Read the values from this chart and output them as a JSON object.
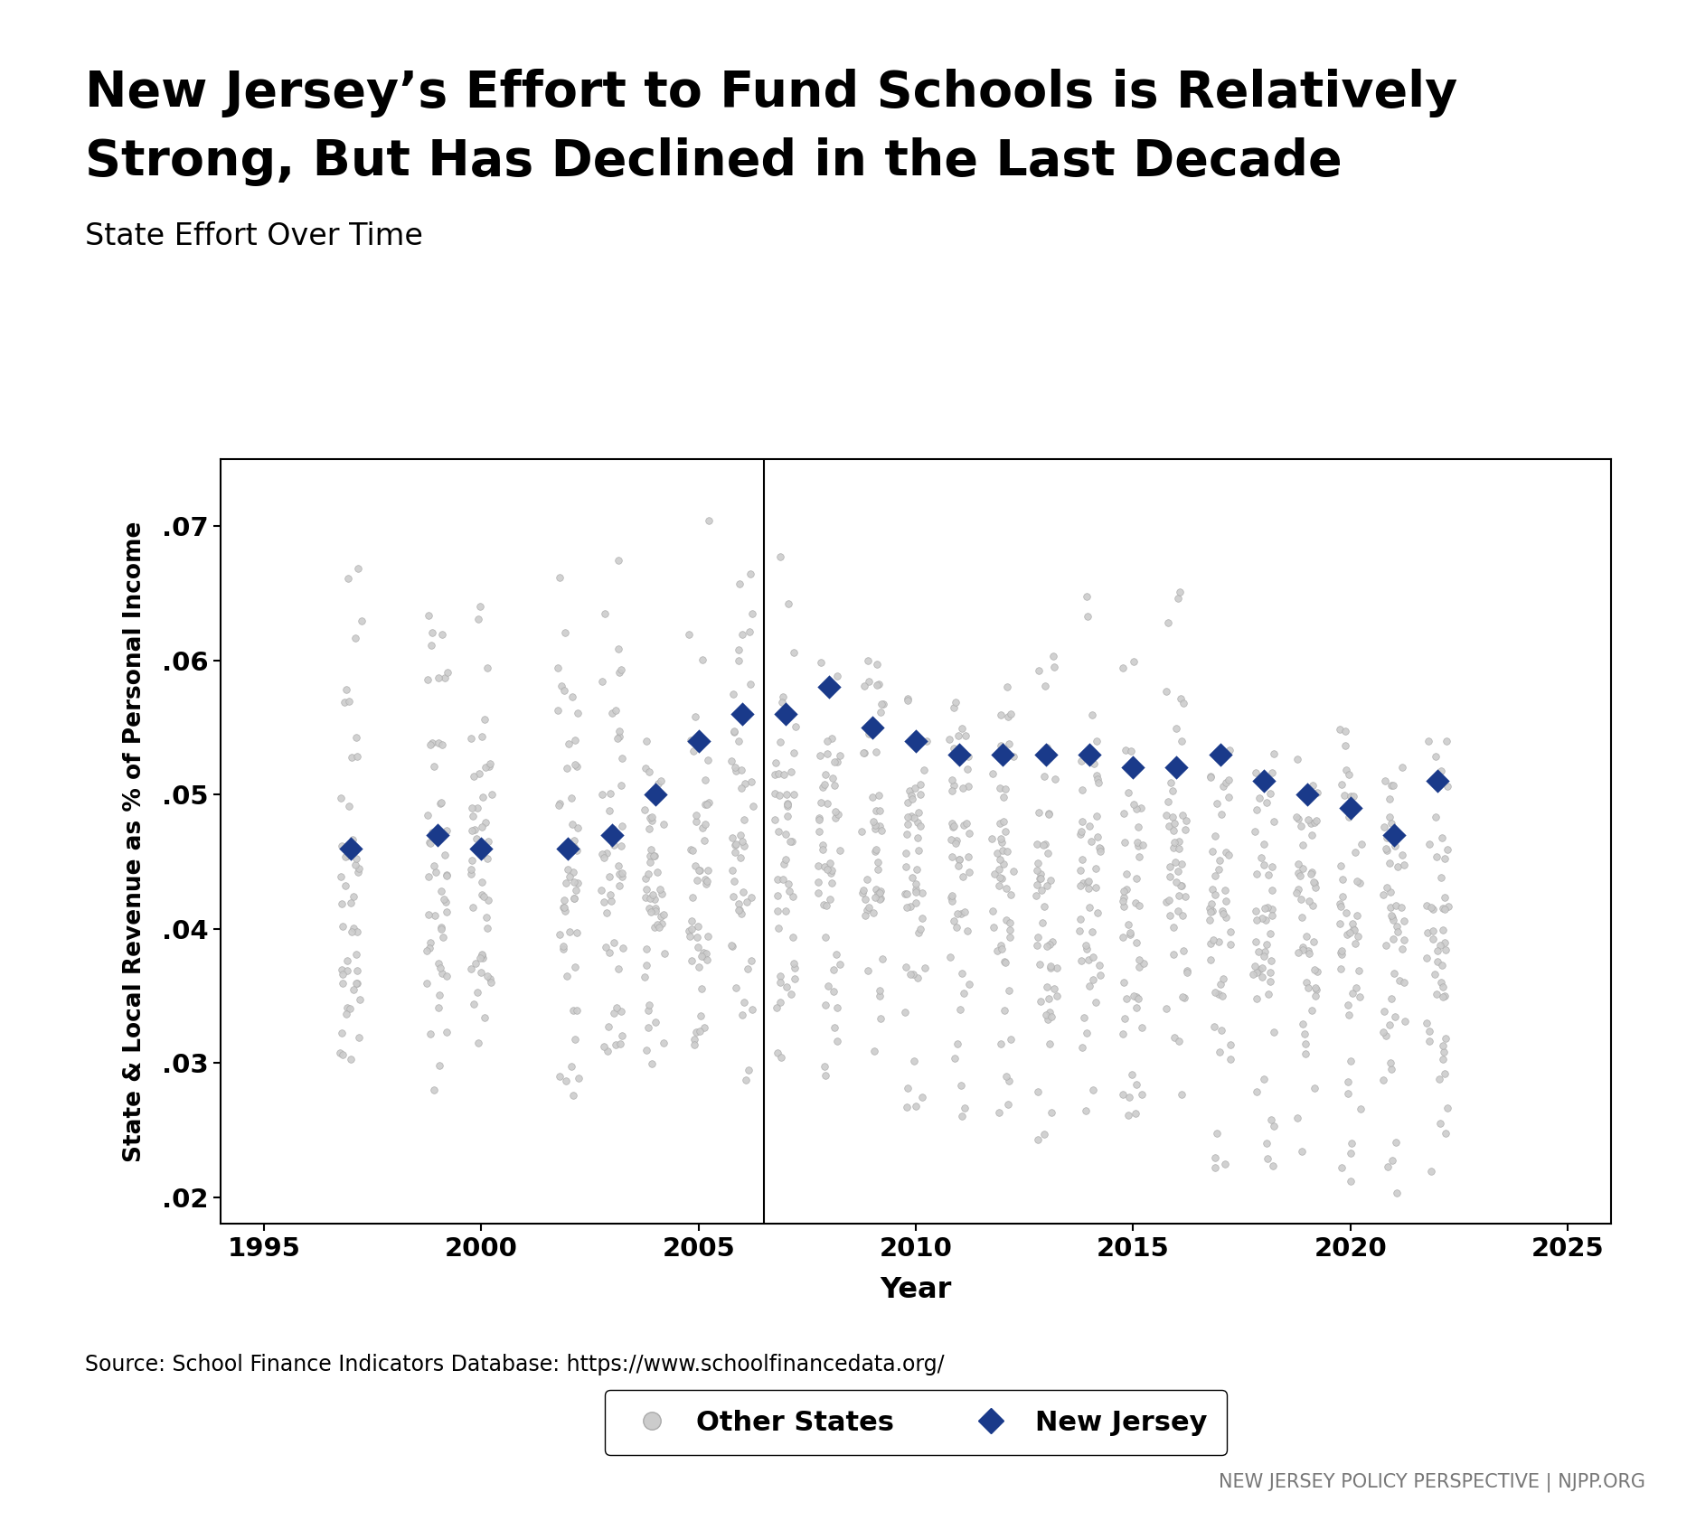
{
  "title_line1": "New Jersey’s Effort to Fund Schools is Relatively",
  "title_line2": "Strong, But Has Declined in the Last Decade",
  "subtitle": "State Effort Over Time",
  "xlabel": "Year",
  "ylabel": "State & Local Revenue as % of Personal Income",
  "source": "Source: School Finance Indicators Database: https://www.schoolfinancedata.org/",
  "footer": "NEW JERSEY POLICY PERSPECTIVE | NJPP.ORG",
  "vertical_line_x": 2006.5,
  "xlim": [
    1994,
    2026
  ],
  "ylim": [
    0.018,
    0.075
  ],
  "yticks": [
    0.02,
    0.03,
    0.04,
    0.05,
    0.06,
    0.07
  ],
  "xticks": [
    1995,
    2000,
    2005,
    2010,
    2015,
    2020,
    2025
  ],
  "nj_data": {
    "years": [
      1997,
      1999,
      2000,
      2002,
      2003,
      2004,
      2005,
      2006,
      2007,
      2008,
      2009,
      2010,
      2011,
      2012,
      2013,
      2014,
      2015,
      2016,
      2017,
      2018,
      2019,
      2020,
      2021,
      2022
    ],
    "values": [
      0.046,
      0.047,
      0.046,
      0.046,
      0.047,
      0.05,
      0.054,
      0.056,
      0.056,
      0.058,
      0.055,
      0.054,
      0.053,
      0.053,
      0.053,
      0.053,
      0.052,
      0.052,
      0.053,
      0.051,
      0.05,
      0.049,
      0.047,
      0.051
    ]
  },
  "nj_color": "#1a3a8a",
  "other_color_face": "#cccccc",
  "other_color_edge": "#aaaaaa",
  "background_color": "#ffffff",
  "seed": 42,
  "other_states_data": {
    "1997": {
      "n": 49,
      "min": 0.03,
      "max": 0.068,
      "mid": 0.044,
      "spread": 0.007
    },
    "1999": {
      "n": 49,
      "min": 0.028,
      "max": 0.066,
      "mid": 0.044,
      "spread": 0.007
    },
    "2000": {
      "n": 49,
      "min": 0.028,
      "max": 0.065,
      "mid": 0.044,
      "spread": 0.007
    },
    "2002": {
      "n": 49,
      "min": 0.027,
      "max": 0.068,
      "mid": 0.043,
      "spread": 0.007
    },
    "2003": {
      "n": 49,
      "min": 0.028,
      "max": 0.068,
      "mid": 0.044,
      "spread": 0.007
    },
    "2004": {
      "n": 49,
      "min": 0.028,
      "max": 0.054,
      "mid": 0.043,
      "spread": 0.006
    },
    "2005": {
      "n": 49,
      "min": 0.028,
      "max": 0.071,
      "mid": 0.044,
      "spread": 0.007
    },
    "2006": {
      "n": 49,
      "min": 0.028,
      "max": 0.071,
      "mid": 0.045,
      "spread": 0.007
    },
    "2007": {
      "n": 49,
      "min": 0.028,
      "max": 0.07,
      "mid": 0.045,
      "spread": 0.007
    },
    "2008": {
      "n": 49,
      "min": 0.028,
      "max": 0.062,
      "mid": 0.045,
      "spread": 0.007
    },
    "2009": {
      "n": 49,
      "min": 0.028,
      "max": 0.06,
      "mid": 0.046,
      "spread": 0.006
    },
    "2010": {
      "n": 49,
      "min": 0.026,
      "max": 0.058,
      "mid": 0.044,
      "spread": 0.006
    },
    "2011": {
      "n": 49,
      "min": 0.025,
      "max": 0.057,
      "mid": 0.044,
      "spread": 0.006
    },
    "2012": {
      "n": 49,
      "min": 0.025,
      "max": 0.058,
      "mid": 0.044,
      "spread": 0.006
    },
    "2013": {
      "n": 49,
      "min": 0.024,
      "max": 0.062,
      "mid": 0.043,
      "spread": 0.006
    },
    "2014": {
      "n": 49,
      "min": 0.024,
      "max": 0.065,
      "mid": 0.043,
      "spread": 0.006
    },
    "2015": {
      "n": 49,
      "min": 0.024,
      "max": 0.06,
      "mid": 0.043,
      "spread": 0.006
    },
    "2016": {
      "n": 49,
      "min": 0.022,
      "max": 0.066,
      "mid": 0.043,
      "spread": 0.006
    },
    "2017": {
      "n": 49,
      "min": 0.02,
      "max": 0.058,
      "mid": 0.042,
      "spread": 0.006
    },
    "2018": {
      "n": 49,
      "min": 0.02,
      "max": 0.055,
      "mid": 0.041,
      "spread": 0.006
    },
    "2019": {
      "n": 49,
      "min": 0.02,
      "max": 0.054,
      "mid": 0.041,
      "spread": 0.006
    },
    "2020": {
      "n": 49,
      "min": 0.02,
      "max": 0.055,
      "mid": 0.041,
      "spread": 0.006
    },
    "2021": {
      "n": 49,
      "min": 0.02,
      "max": 0.054,
      "mid": 0.04,
      "spread": 0.006
    },
    "2022": {
      "n": 49,
      "min": 0.02,
      "max": 0.054,
      "mid": 0.04,
      "spread": 0.006
    }
  }
}
